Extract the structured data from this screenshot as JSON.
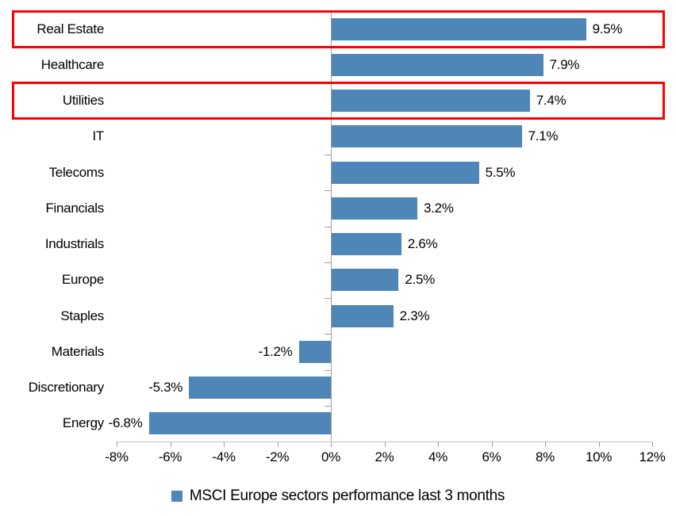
{
  "chart_data": {
    "type": "bar",
    "orientation": "horizontal",
    "categories": [
      "Real Estate",
      "Healthcare",
      "Utilities",
      "IT",
      "Telecoms",
      "Financials",
      "Industrials",
      "Europe",
      "Staples",
      "Materials",
      "Discretionary",
      "Energy"
    ],
    "values": [
      9.5,
      7.9,
      7.4,
      7.1,
      5.5,
      3.2,
      2.6,
      2.5,
      2.3,
      -1.2,
      -5.3,
      -6.8
    ],
    "data_labels": [
      "9.5%",
      "7.9%",
      "7.4%",
      "7.1%",
      "5.5%",
      "3.2%",
      "2.6%",
      "2.5%",
      "2.3%",
      "-1.2%",
      "-5.3%",
      "-6.8%"
    ],
    "highlighted_categories": [
      "Real Estate",
      "Utilities"
    ],
    "x_axis": {
      "tick_values": [
        -8,
        -6,
        -4,
        -2,
        0,
        2,
        4,
        6,
        8,
        10,
        12
      ],
      "tick_labels": [
        "-8%",
        "-6%",
        "-4%",
        "-2%",
        "0%",
        "2%",
        "4%",
        "6%",
        "8%",
        "10%",
        "12%"
      ],
      "range": [
        -8,
        12
      ]
    },
    "legend": {
      "label": "MSCI Europe sectors performance last 3 months",
      "position": "bottom"
    },
    "grid": false,
    "colors": {
      "bar": "#4E86B8",
      "highlight_box": "#FF0000",
      "axis_line": "#c2c2c2",
      "tick": "#9e9e9e",
      "text": "#000000"
    }
  }
}
